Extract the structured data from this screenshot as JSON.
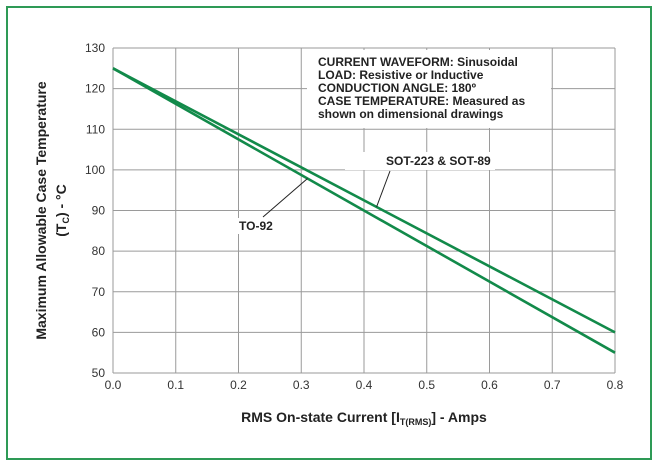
{
  "frame_color": "#2e9a56",
  "chart_data": {
    "type": "line",
    "xlabel": "RMS On-state Current [I",
    "xlabel_sub": "T(RMS)",
    "xlabel_suffix": "] - Amps",
    "ylabel_line1": "Maximum Allowable Case Temperature",
    "ylabel_line2": "(T",
    "ylabel_sub": "C",
    "ylabel_line2_suffix": ") - °C",
    "xlim": [
      0.0,
      0.8
    ],
    "ylim": [
      50,
      130
    ],
    "x_ticks": [
      "0.0",
      "0.1",
      "0.2",
      "0.3",
      "0.4",
      "0.5",
      "0.6",
      "0.7",
      "0.8"
    ],
    "y_ticks": [
      "50",
      "60",
      "70",
      "80",
      "90",
      "100",
      "110",
      "120",
      "130"
    ],
    "grid": true,
    "series": [
      {
        "name": "TO-92",
        "x": [
          0.0,
          0.8
        ],
        "y": [
          125,
          55
        ],
        "color": "#128a4a"
      },
      {
        "name": "SOT-223 & SOT-89",
        "x": [
          0.0,
          0.8
        ],
        "y": [
          125,
          60
        ],
        "color": "#128a4a"
      }
    ],
    "notes": [
      "CURRENT WAVEFORM: Sinusoidal",
      "LOAD: Resistive or Inductive",
      "CONDUCTION ANGLE: 180º",
      "CASE TEMPERATURE: Measured as",
      "shown on dimensional drawings"
    ]
  }
}
